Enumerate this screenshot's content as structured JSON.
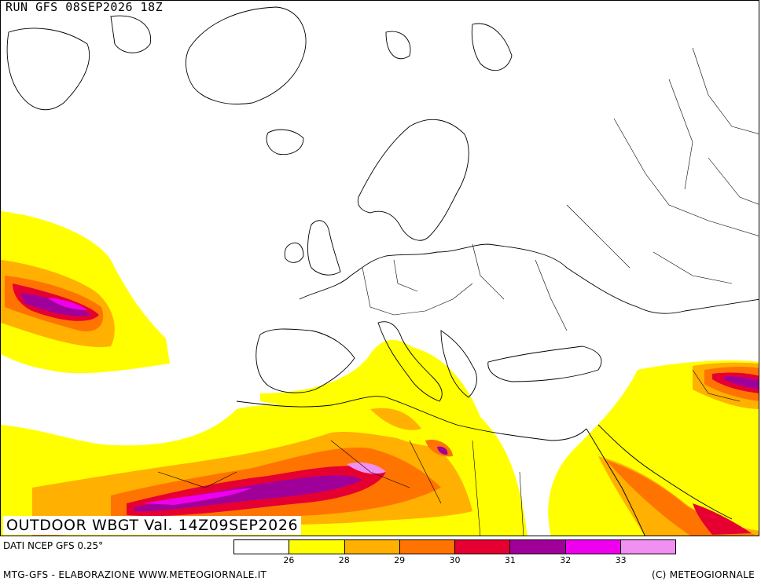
{
  "header": {
    "run": "RUN GFS 08SEP2026 18Z"
  },
  "title": "OUTDOOR WBGT Val. 14Z09SEP2026",
  "footer": {
    "source": "DATI NCEP GFS 0.25°",
    "credit_left": "MTG-GFS - ELABORAZIONE WWW.METEOGIORNALE.IT",
    "credit_right": "(C) METEOGIORNALE"
  },
  "legend": {
    "colors": [
      "#ffffff",
      "#ffff00",
      "#ffb000",
      "#ff7400",
      "#e60032",
      "#a0009a",
      "#ee00ee",
      "#f090f0"
    ],
    "ticks": [
      "26",
      "28",
      "29",
      "30",
      "31",
      "32",
      "33"
    ]
  },
  "map": {
    "land_color": "#ffffff",
    "border_color": "#000000"
  }
}
